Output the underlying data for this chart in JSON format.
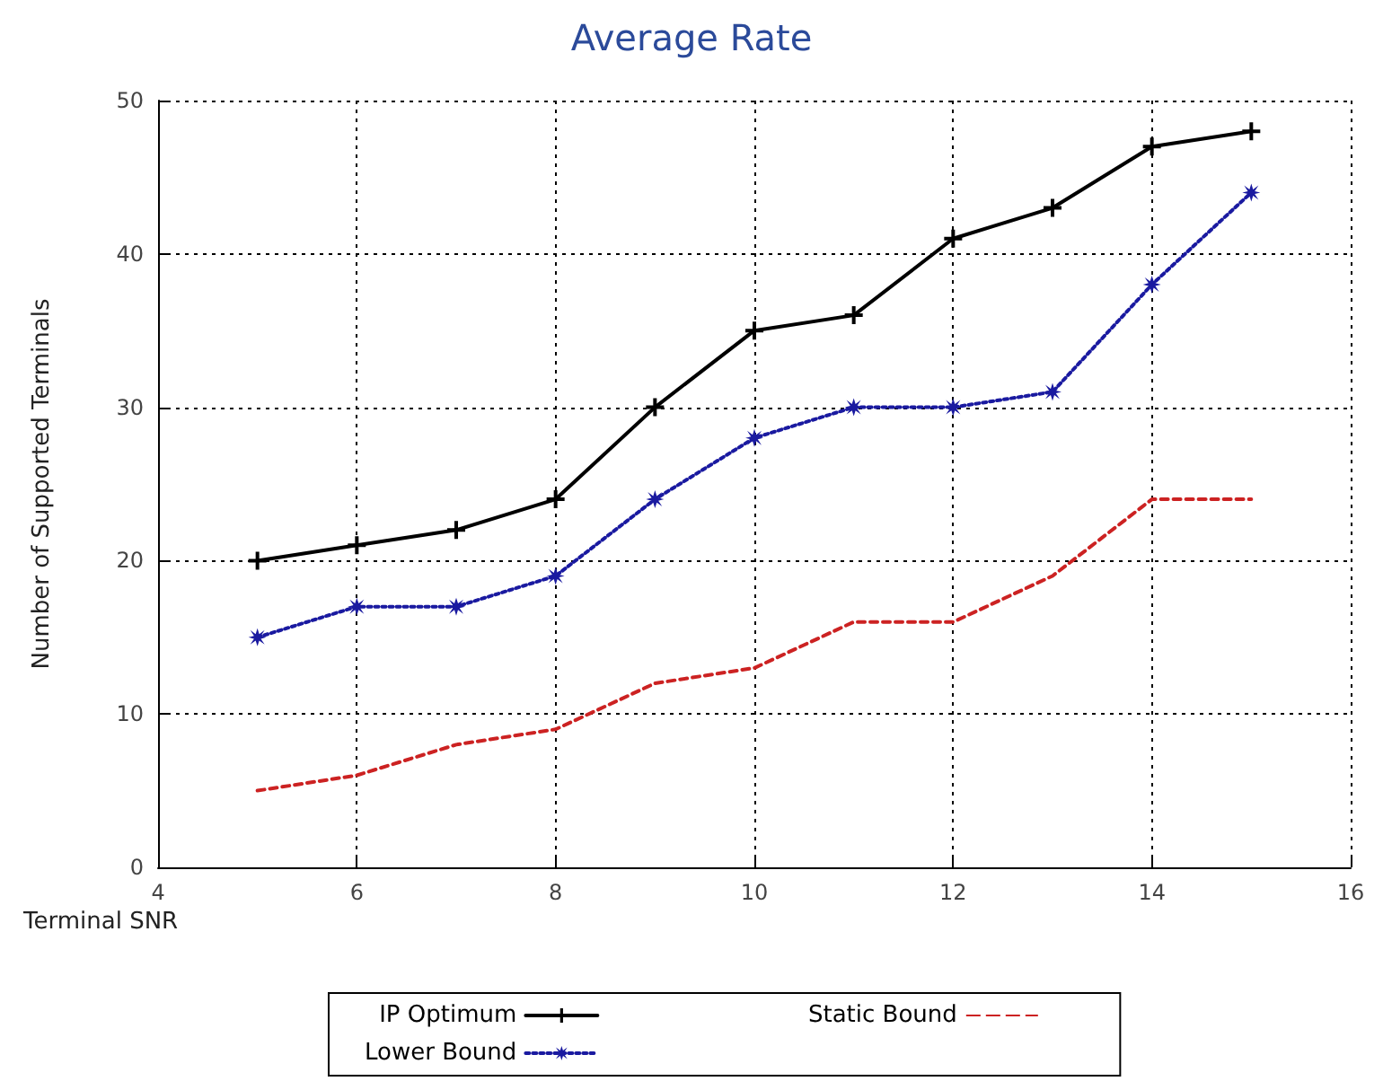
{
  "chart_data": {
    "type": "line",
    "title": "Average Rate",
    "xlabel": "Terminal SNR",
    "ylabel": "Number of Supported Terminals",
    "x": [
      5,
      6,
      7,
      8,
      9,
      10,
      11,
      12,
      13,
      14,
      15
    ],
    "series": [
      {
        "name": "IP Optimum",
        "color": "#000000",
        "marker": "cross",
        "line_style": "solid",
        "values": [
          20,
          21,
          22,
          24,
          30,
          35,
          36,
          41,
          43,
          47,
          48
        ]
      },
      {
        "name": "Lower Bound",
        "color": "#1a1aa0",
        "marker": "star",
        "line_style": "dotted",
        "values": [
          15,
          17,
          17,
          19,
          24,
          28,
          30,
          30,
          31,
          38,
          44
        ]
      },
      {
        "name": "Static Bound",
        "color": "#cc2222",
        "marker": "none",
        "line_style": "dashed",
        "values": [
          5,
          6,
          8,
          9,
          12,
          13,
          16,
          16,
          19,
          24,
          24
        ]
      }
    ],
    "xlim": [
      4,
      16
    ],
    "xticks": [
      4,
      6,
      8,
      10,
      12,
      14,
      16
    ],
    "ylim": [
      0,
      50
    ],
    "yticks": [
      0,
      10,
      20,
      30,
      40,
      50
    ],
    "grid": true,
    "legend": "bottom"
  }
}
